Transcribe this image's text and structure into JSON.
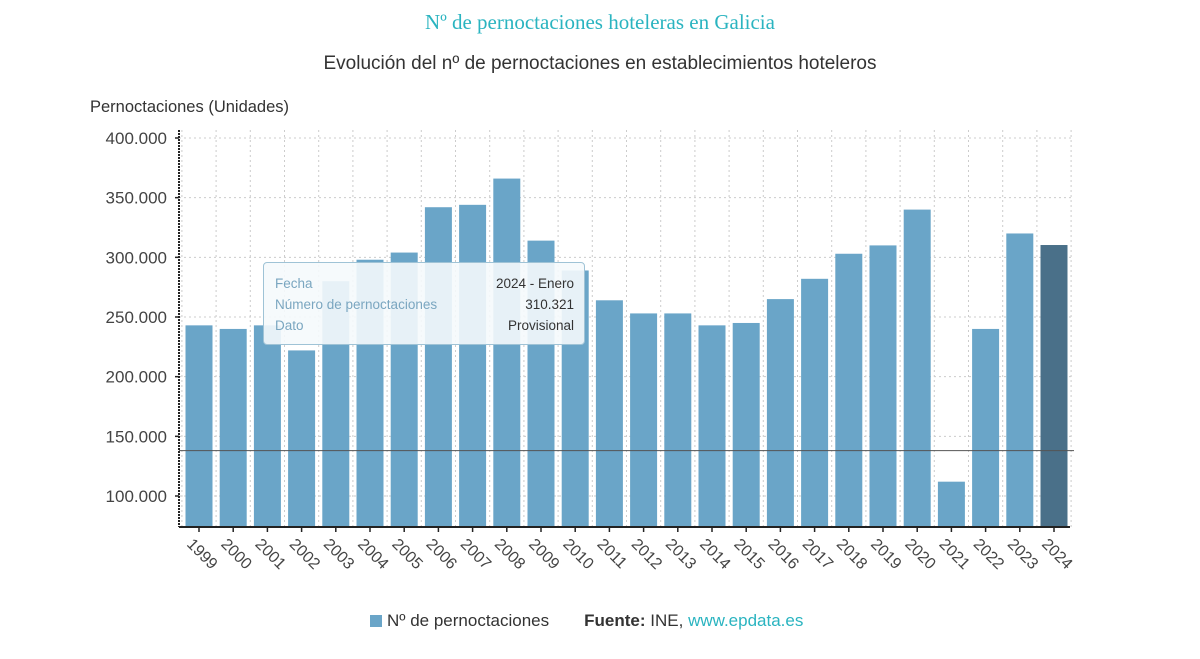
{
  "header": {
    "title": "Nº de pernoctaciones hoteleras en Galicia",
    "subtitle": "Evolución del nº de pernoctaciones en establecimientos hoteleros"
  },
  "chart_data": {
    "type": "bar",
    "title": "Evolución del nº de pernoctaciones en establecimientos hoteleros",
    "ylabel": "Pernoctaciones (Unidades)",
    "xlabel": "",
    "ylim": [
      74000,
      400000
    ],
    "yticks": [
      100000,
      150000,
      200000,
      250000,
      300000,
      350000,
      400000
    ],
    "ytick_labels": [
      "100.000",
      "150.000",
      "200.000",
      "250.000",
      "300.000",
      "350.000",
      "400.000"
    ],
    "grid": true,
    "reference_line": 138000,
    "categories": [
      "1999",
      "2000",
      "2001",
      "2002",
      "2003",
      "2004",
      "2005",
      "2006",
      "2007",
      "2008",
      "2009",
      "2010",
      "2011",
      "2012",
      "2013",
      "2014",
      "2015",
      "2016",
      "2017",
      "2018",
      "2019",
      "2020",
      "2021",
      "2022",
      "2023",
      "2024"
    ],
    "series": [
      {
        "name": "Nº de pernoctaciones",
        "color": "#6aa5c8",
        "highlight_color": "#4a7089",
        "highlight_index": 25,
        "values": [
          243000,
          240000,
          243000,
          222000,
          280000,
          298000,
          304000,
          342000,
          344000,
          366000,
          314000,
          289000,
          264000,
          253000,
          253000,
          243000,
          245000,
          265000,
          282000,
          303000,
          310000,
          340000,
          112000,
          240000,
          320000,
          310321
        ]
      }
    ],
    "legend": "bottom"
  },
  "tooltip": {
    "rows": [
      {
        "key": "Fecha",
        "value": "2024 - Enero"
      },
      {
        "key": "Número de pernoctaciones",
        "value": "310.321"
      },
      {
        "key": "Dato",
        "value": "Provisional"
      }
    ]
  },
  "footer": {
    "legend_label": "Nº de pernoctaciones",
    "source_label": "Fuente:",
    "source_text": "INE,",
    "source_link": "www.epdata.es"
  }
}
